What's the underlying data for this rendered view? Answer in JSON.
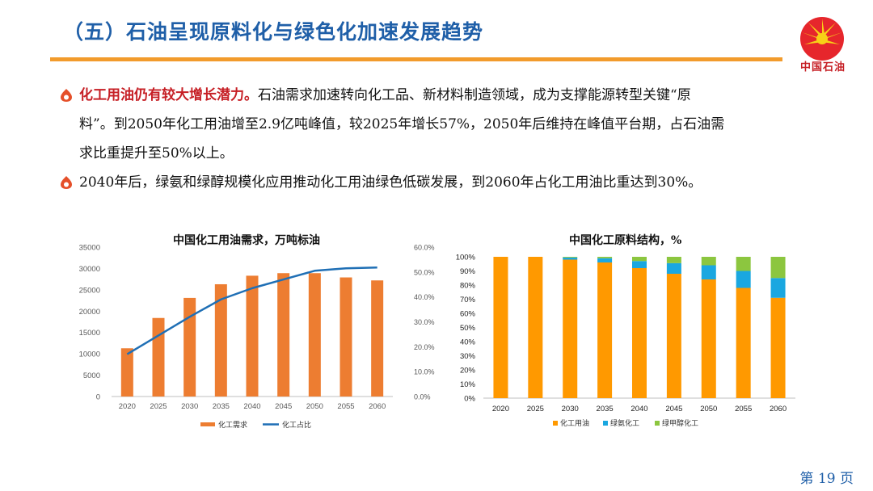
{
  "header": {
    "title": "（五）石油呈现原料化与绿色化加速发展趋势",
    "logo_text": "中国石油"
  },
  "bullets": [
    {
      "highlight": "化工用油仍有较大增长潜力。",
      "line1": "石油需求加速转向化工品、新材料制造领域，成为支撑能源转型关键“原",
      "line2": "料”。到2050年化工用油增至2.9亿吨峰值，较2025年增长57%，2050年后维持在峰值平台期，占石油需",
      "line3": "求比重提升至50%以上。"
    },
    {
      "text": "2040年后，绿氨和绿醇规模化应用推动化工用油绿色低碳发展，到2060年占化工用油比重达到30%。"
    }
  ],
  "chart_data": [
    {
      "type": "bar+line",
      "title": "中国化工用油需求，万吨标油",
      "categories": [
        "2020",
        "2025",
        "2030",
        "2035",
        "2040",
        "2045",
        "2050",
        "2055",
        "2060"
      ],
      "series": [
        {
          "name": "化工需求",
          "type": "bar",
          "axis": "left",
          "color": "#ed7d31",
          "values": [
            11300,
            18400,
            23100,
            26300,
            28300,
            28900,
            28900,
            27900,
            27200
          ]
        },
        {
          "name": "化工占比",
          "type": "line",
          "axis": "right",
          "color": "#1f6fb5",
          "values": [
            17.0,
            24.5,
            32.0,
            39.0,
            43.5,
            47.0,
            50.5,
            51.5,
            51.8
          ]
        }
      ],
      "left_axis": {
        "min": 0,
        "max": 35000,
        "ticks": [
          "0",
          "5000",
          "10000",
          "15000",
          "20000",
          "25000",
          "30000",
          "35000"
        ]
      },
      "right_axis": {
        "min": 0,
        "max": 60,
        "ticks": [
          "0.0%",
          "10.0%",
          "20.0%",
          "30.0%",
          "40.0%",
          "50.0%",
          "60.0%"
        ]
      },
      "legend": [
        "化工需求",
        "化工占比"
      ]
    },
    {
      "type": "stacked-bar",
      "title": "中国化工原料结构，%",
      "categories": [
        "2020",
        "2025",
        "2030",
        "2035",
        "2040",
        "2045",
        "2050",
        "2055",
        "2060"
      ],
      "series": [
        {
          "name": "化工用油",
          "color": "#ff9900",
          "values": [
            100,
            100,
            98,
            96,
            92,
            88,
            84,
            78,
            71
          ]
        },
        {
          "name": "绿氨化工",
          "color": "#1aa7e0",
          "values": [
            0,
            0,
            1.5,
            3,
            5,
            7.5,
            10,
            12,
            14
          ]
        },
        {
          "name": "绿甲醇化工",
          "color": "#8cc63f",
          "values": [
            0,
            0,
            0.5,
            1,
            3,
            4.5,
            6,
            10,
            15
          ]
        }
      ],
      "y_axis": {
        "min": 0,
        "max": 100,
        "ticks": [
          "0%",
          "10%",
          "20%",
          "30%",
          "40%",
          "50%",
          "60%",
          "70%",
          "80%",
          "90%",
          "100%"
        ]
      },
      "legend": [
        "化工用油",
        "绿氨化工",
        "绿甲醇化工"
      ]
    }
  ],
  "footer": {
    "page": "第 19 页"
  }
}
